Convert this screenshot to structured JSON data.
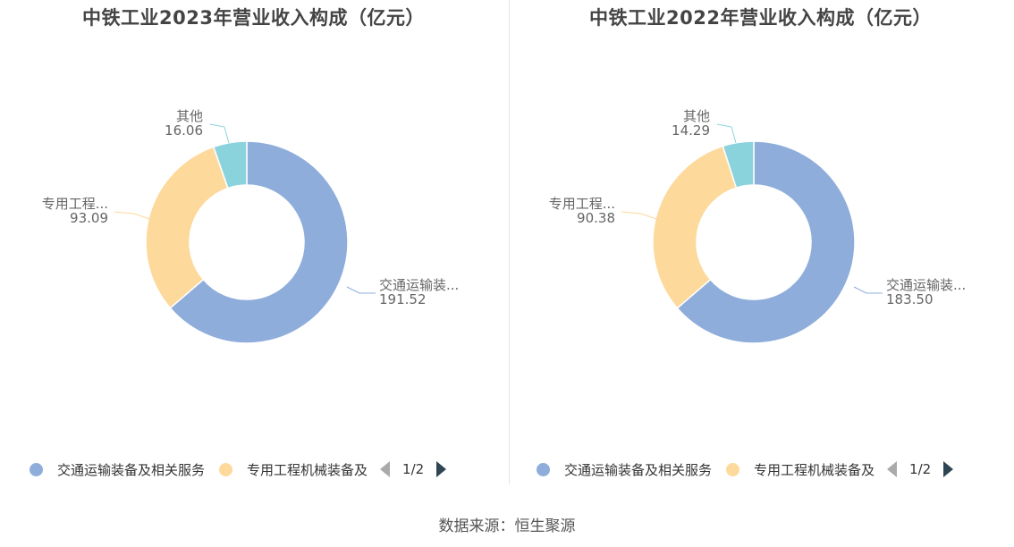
{
  "source_text": "数据来源：恒生聚源",
  "legend_pager": "1/2",
  "chart_data": [
    {
      "type": "pie",
      "title": "中铁工业2023年营业收入构成（亿元）",
      "series": [
        {
          "name": "交通运输装备及相关服务",
          "short": "交通运输装...",
          "value": 191.52,
          "value_label": "191.52",
          "color": "#8eaddb"
        },
        {
          "name": "专用工程机械装备及相关服务",
          "short": "专用工程...",
          "value": 93.09,
          "value_label": "93.09",
          "color": "#fdd99b"
        },
        {
          "name": "其他",
          "short": "其他",
          "value": 16.06,
          "value_label": "16.06",
          "color": "#8bd3dc"
        }
      ],
      "legend_visible": [
        "交通运输装备及相关服务",
        "专用工程机械装备及"
      ]
    },
    {
      "type": "pie",
      "title": "中铁工业2022年营业收入构成（亿元）",
      "series": [
        {
          "name": "交通运输装备及相关服务",
          "short": "交通运输装...",
          "value": 183.5,
          "value_label": "183.50",
          "color": "#8eaddb"
        },
        {
          "name": "专用工程机械装备及相关服务",
          "short": "专用工程...",
          "value": 90.38,
          "value_label": "90.38",
          "color": "#fdd99b"
        },
        {
          "name": "其他",
          "short": "其他",
          "value": 14.29,
          "value_label": "14.29",
          "color": "#8bd3dc"
        }
      ],
      "legend_visible": [
        "交通运输装备及相关服务",
        "专用工程机械装备及"
      ]
    }
  ]
}
